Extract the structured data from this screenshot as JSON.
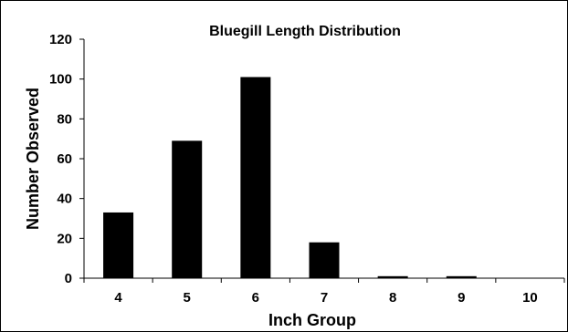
{
  "chart_data": {
    "type": "bar",
    "title": "Bluegill Length Distribution",
    "xlabel": "Inch Group",
    "ylabel": "Number Observed",
    "categories": [
      "4",
      "5",
      "6",
      "7",
      "8",
      "9",
      "10"
    ],
    "values": [
      33,
      69,
      101,
      18,
      1,
      1,
      0
    ],
    "ylim": [
      0,
      120
    ],
    "yticks": [
      "0",
      "20",
      "40",
      "60",
      "80",
      "100",
      "120"
    ],
    "ytick_values": [
      0,
      20,
      40,
      60,
      80,
      100,
      120
    ],
    "grid": false,
    "legend": "none",
    "bar_color": "#000000"
  }
}
